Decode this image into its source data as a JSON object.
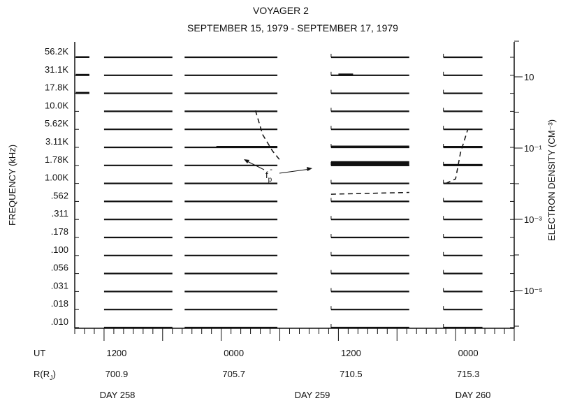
{
  "chart_data": {
    "type": "line",
    "title": "VOYAGER 2",
    "subtitle": "SEPTEMBER 15, 1979 - SEPTEMBER 17, 1979",
    "ylabel": "FREQUENCY (kHz)",
    "y2label": "ELECTRON DENSITY (CM⁻³)",
    "y_ticks": [
      "56.2K",
      "31.1K",
      "17.8K",
      "10.0K",
      "5.62K",
      "3.11K",
      "1.78K",
      "1.00K",
      ".562",
      ".311",
      ".178",
      ".100",
      ".056",
      ".031",
      ".018",
      ".010"
    ],
    "y2_ticks": [
      "10",
      "10⁻¹",
      "10⁻³",
      "10⁻⁵"
    ],
    "x_rows": {
      "ut_label": "UT",
      "ut_ticks": [
        "1200",
        "0000",
        "1200",
        "0000"
      ],
      "r_label": "R(R",
      "r_sub": "J",
      "r_close": ")",
      "r_values": [
        "700.9",
        "705.7",
        "710.5",
        "715.3"
      ],
      "day_labels": [
        "DAY 258",
        "DAY 259",
        "DAY 260"
      ]
    },
    "annotation": {
      "text": "f",
      "sub": "p",
      "sup": "-"
    },
    "segments": [
      {
        "start_hours": 6,
        "end_hours": 20
      },
      {
        "start_hours": 22.5,
        "end_hours": 41.5
      },
      {
        "start_hours": 52.5,
        "end_hours": 68.5
      },
      {
        "start_hours": 75.5,
        "end_hours": 83.5
      }
    ],
    "x_range_hours": [
      0,
      90
    ],
    "fp_curves": [
      {
        "points": [
          [
            37,
            2.95
          ],
          [
            38.5,
            4.3
          ],
          [
            40.5,
            5.2
          ],
          [
            42,
            5.7
          ]
        ]
      },
      {
        "points": [
          [
            52.5,
            7.6
          ],
          [
            68.5,
            7.5
          ]
        ]
      },
      {
        "points": [
          [
            76,
            7.0
          ],
          [
            78,
            6.75
          ],
          [
            79,
            5.3
          ],
          [
            80.5,
            4.0
          ]
        ]
      }
    ],
    "activity_bands": [
      {
        "channel": 0,
        "start_hours": 0.2,
        "end_hours": 3,
        "level": 1.5
      },
      {
        "channel": 1,
        "start_hours": 0.2,
        "end_hours": 3,
        "level": 2
      },
      {
        "channel": 2,
        "start_hours": 0.2,
        "end_hours": 3,
        "level": 2
      },
      {
        "channel": 1,
        "start_hours": 54,
        "end_hours": 57,
        "level": 2.5
      },
      {
        "channel": 5,
        "start_hours": 29,
        "end_hours": 41.5,
        "level": 2
      },
      {
        "channel": 5,
        "start_hours": 52.5,
        "end_hours": 68.5,
        "level": 2.5
      },
      {
        "channel": 6,
        "start_hours": 52.5,
        "end_hours": 68.5,
        "level": 6
      },
      {
        "channel": 5,
        "start_hours": 75.5,
        "end_hours": 83.5,
        "level": 2
      },
      {
        "channel": 6,
        "start_hours": 75.5,
        "end_hours": 83.5,
        "level": 2
      }
    ],
    "grid": false
  }
}
